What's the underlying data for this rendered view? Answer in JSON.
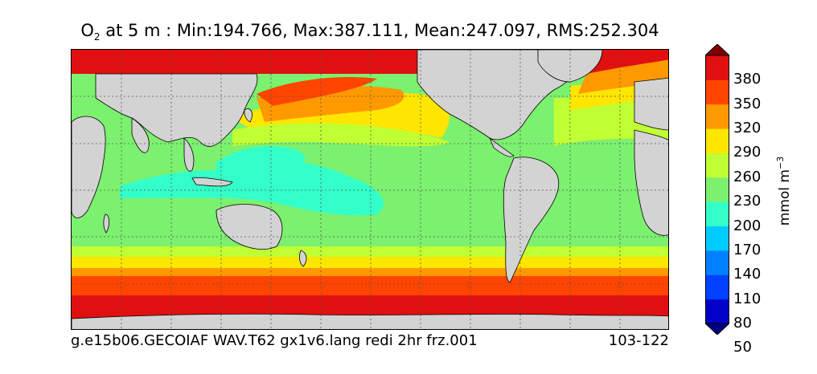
{
  "title": {
    "var": "O",
    "sub": "2",
    "rest": " at 5 m : Min:194.766, Max:387.111, Mean:247.097, RMS:252.304"
  },
  "footer": {
    "left": "g.e15b06.GECOIAF WAV.T62 gx1v6.lang redi 2hr frz.001",
    "right": "103-122"
  },
  "colorbar": {
    "units": "mmol m",
    "units_exp": "−3",
    "tick_labels": [
      "380",
      "350",
      "320",
      "290",
      "260",
      "230",
      "200",
      "170",
      "140",
      "110",
      "80",
      "50"
    ],
    "colors": [
      "#000080",
      "#0000c8",
      "#0040ff",
      "#0080ff",
      "#00ccff",
      "#33ffc8",
      "#7cf06f",
      "#c0ff33",
      "#ffe600",
      "#ff9900",
      "#ff4500",
      "#e01010",
      "#800000"
    ]
  },
  "map": {
    "land_color": "#d3d3d3",
    "grid": "dotted"
  }
}
